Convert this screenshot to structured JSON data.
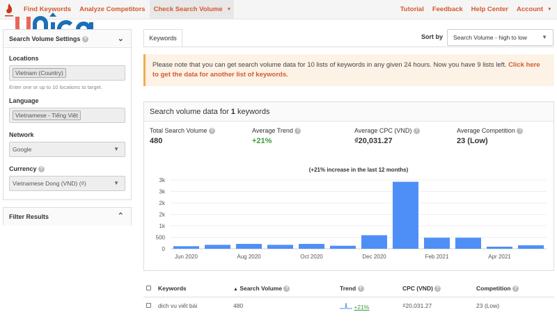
{
  "nav": {
    "left": [
      "Find Keywords",
      "Analyze Competitors",
      "Check Search Volume"
    ],
    "right": [
      "Tutorial",
      "Feedback",
      "Help Center",
      "Account"
    ]
  },
  "logo": {
    "text": "unica",
    "brand_colors": [
      "#e8665a",
      "#1b6fb5"
    ]
  },
  "settings": {
    "title": "Search Volume Settings",
    "locations_label": "Locations",
    "location_value": "Vietnam (Country)",
    "locations_hint": "Enter one or up to 10 locations to target.",
    "language_label": "Language",
    "language_value": "Vietnamese - Tiếng Việt",
    "network_label": "Network",
    "network_value": "Google",
    "currency_label": "Currency",
    "currency_value": "Vietnamese Dong (VND) (₫)"
  },
  "filter": {
    "title": "Filter Results"
  },
  "main": {
    "tab": "Keywords",
    "sort_label": "Sort by",
    "sort_value": "Search Volume - high to low",
    "notice_text": "Please note that you can get search volume data for 10 lists of keywords in any given 24 hours. Now you have 9 lists left.",
    "notice_link": "Click here to get the data for another list of keywords.",
    "card_title_pre": "Search volume data for ",
    "card_title_count": "1",
    "card_title_post": " keywords",
    "stats": [
      {
        "label": "Total Search Volume",
        "value": "480"
      },
      {
        "label": "Average Trend",
        "value": "+21%"
      },
      {
        "label": "Average CPC (VND)",
        "value": "₫20,031.27"
      },
      {
        "label": "Average Competition",
        "value": "23 (Low)"
      }
    ]
  },
  "chart_data": {
    "type": "bar",
    "title": "(+21% increase in the last 12 months)",
    "categories": [
      "Jun 2020",
      "Jul 2020",
      "Aug 2020",
      "Sep 2020",
      "Oct 2020",
      "Nov 2020",
      "Dec 2020",
      "Jan 2021",
      "Feb 2021",
      "Mar 2021",
      "Apr 2021",
      "May 2021"
    ],
    "x_tick_labels": [
      "Jun 2020",
      "Aug 2020",
      "Oct 2020",
      "Dec 2020",
      "Feb 2021",
      "Apr 2021"
    ],
    "values": [
      110,
      170,
      210,
      170,
      210,
      130,
      590,
      2920,
      480,
      480,
      90,
      150
    ],
    "y_ticks": [
      0,
      500,
      1000,
      1500,
      2000,
      2500,
      3000
    ],
    "y_tick_labels": [
      "0",
      "500",
      "1k",
      "2k",
      "2k",
      "3k",
      "3k"
    ],
    "ylim": [
      0,
      3000
    ],
    "grid": true,
    "bar_color": "#4e8ff7"
  },
  "table": {
    "headers": [
      "Keywords",
      "Search Volume",
      "Trend",
      "CPC (VND)",
      "Competition"
    ],
    "rows": [
      {
        "keyword": "dich vu viết bài",
        "volume": "480",
        "trend": "+21%",
        "cpc": "₫20,031.27",
        "competition": "23 (Low)"
      }
    ]
  }
}
